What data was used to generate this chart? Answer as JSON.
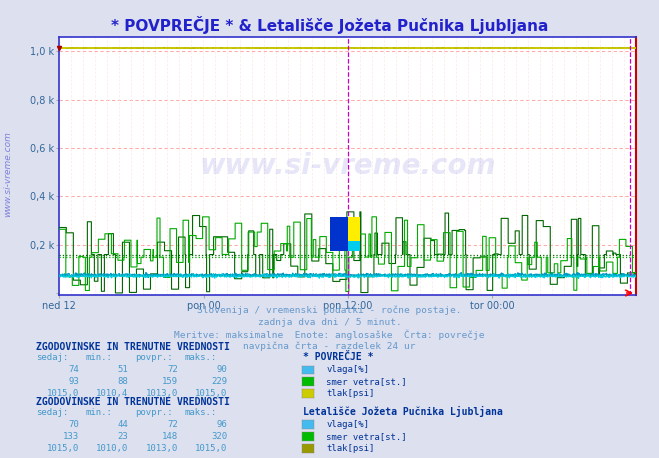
{
  "title": "* POVPREČJE * & Letališče Jožeta Pučnika Ljubljana",
  "title_color": "#2222cc",
  "bg_color": "#dde0ee",
  "plot_bg_color": "#ffffff",
  "grid_color_h": "#ff9999",
  "grid_color_v": "#ffdddd",
  "ytick_labels": [
    "",
    "0,2 k",
    "0,4 k",
    "0,6 k",
    "0,8 k",
    "1,0 k"
  ],
  "ytick_vals": [
    0.0,
    0.2,
    0.4,
    0.6,
    0.8,
    1.0
  ],
  "xtick_labels": [
    "ned 12",
    "pon 00",
    "pon 12:00",
    "tor 00:00"
  ],
  "xtick_positions": [
    0,
    288,
    576,
    864
  ],
  "n_points": 1152,
  "vline1": 576,
  "vline2": 1140,
  "vline_color": "#cc00cc",
  "border_color": "#3333cc",
  "right_border_color": "#cc0000",
  "watermark_color": "#3333cc",
  "subtitle_lines": [
    "Slovenija / vremenski podatki - ročne postaje.",
    "zadnja dva dni / 5 minut.",
    "Meritve: maksimalne  Enote: anglosaške  Črta: povrečje",
    "navpična črta - razdelek 24 ur"
  ],
  "subtitle_color": "#6699cc",
  "section1_title": "ZGODOVINSKE IN TRENUTNE VREDNOSTI",
  "section1_header": "* POVREČJE *",
  "section1_rows": [
    {
      "sedaj": "74",
      "min": "51",
      "povpr": "72",
      "maks": "90",
      "color": "#44bbee",
      "label": "vlaga[%]"
    },
    {
      "sedaj": "93",
      "min": "88",
      "povpr": "159",
      "maks": "229",
      "color": "#00bb00",
      "label": "smer vetra[st.]"
    },
    {
      "sedaj": "1015,0",
      "min": "1010,4",
      "povpr": "1013,0",
      "maks": "1015,0",
      "color": "#cccc00",
      "label": "tlak[psi]"
    }
  ],
  "section2_title": "ZGODOVINSKE IN TRENUTNE VREDNOSTI",
  "section2_header": "Letališče Jožeta Pučnika Ljubljana",
  "section2_rows": [
    {
      "sedaj": "70",
      "min": "44",
      "povpr": "72",
      "maks": "96",
      "color": "#44bbee",
      "label": "vlaga[%]"
    },
    {
      "sedaj": "133",
      "min": "23",
      "povpr": "148",
      "maks": "320",
      "color": "#00bb00",
      "label": "smer vetra[st.]"
    },
    {
      "sedaj": "1015,0",
      "min": "1010,0",
      "povpr": "1013,0",
      "maks": "1015,0",
      "color": "#999900",
      "label": "tlak[psi]"
    }
  ],
  "col_color": "#4499cc",
  "label_color": "#003399"
}
